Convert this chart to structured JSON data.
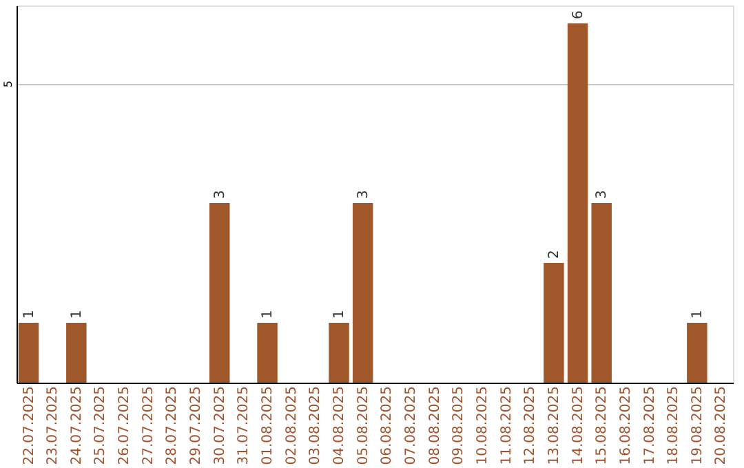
{
  "chart_data": {
    "type": "bar",
    "categories": [
      "22.07.2025",
      "23.07.2025",
      "24.07.2025",
      "25.07.2025",
      "26.07.2025",
      "27.07.2025",
      "28.07.2025",
      "29.07.2025",
      "30.07.2025",
      "31.07.2025",
      "01.08.2025",
      "02.08.2025",
      "03.08.2025",
      "04.08.2025",
      "05.08.2025",
      "06.08.2025",
      "07.08.2025",
      "08.08.2025",
      "09.08.2025",
      "10.08.2025",
      "11.08.2025",
      "12.08.2025",
      "13.08.2025",
      "14.08.2025",
      "15.08.2025",
      "16.08.2025",
      "17.08.2025",
      "18.08.2025",
      "19.08.2025",
      "20.08.2025"
    ],
    "values": [
      1,
      0,
      1,
      0,
      0,
      0,
      0,
      0,
      3,
      0,
      1,
      0,
      0,
      1,
      3,
      0,
      0,
      0,
      0,
      0,
      0,
      0,
      2,
      6,
      3,
      0,
      0,
      0,
      1,
      0
    ],
    "value_labels": [
      "1",
      null,
      "1",
      null,
      null,
      null,
      null,
      null,
      "3",
      null,
      "1",
      null,
      null,
      "1",
      "3",
      null,
      null,
      null,
      null,
      null,
      null,
      null,
      "2",
      "6",
      "3",
      null,
      null,
      null,
      "1",
      null
    ],
    "color": "#a0572a",
    "ylim": [
      0,
      6.3
    ],
    "yticks": [
      5
    ],
    "grid": "y"
  }
}
